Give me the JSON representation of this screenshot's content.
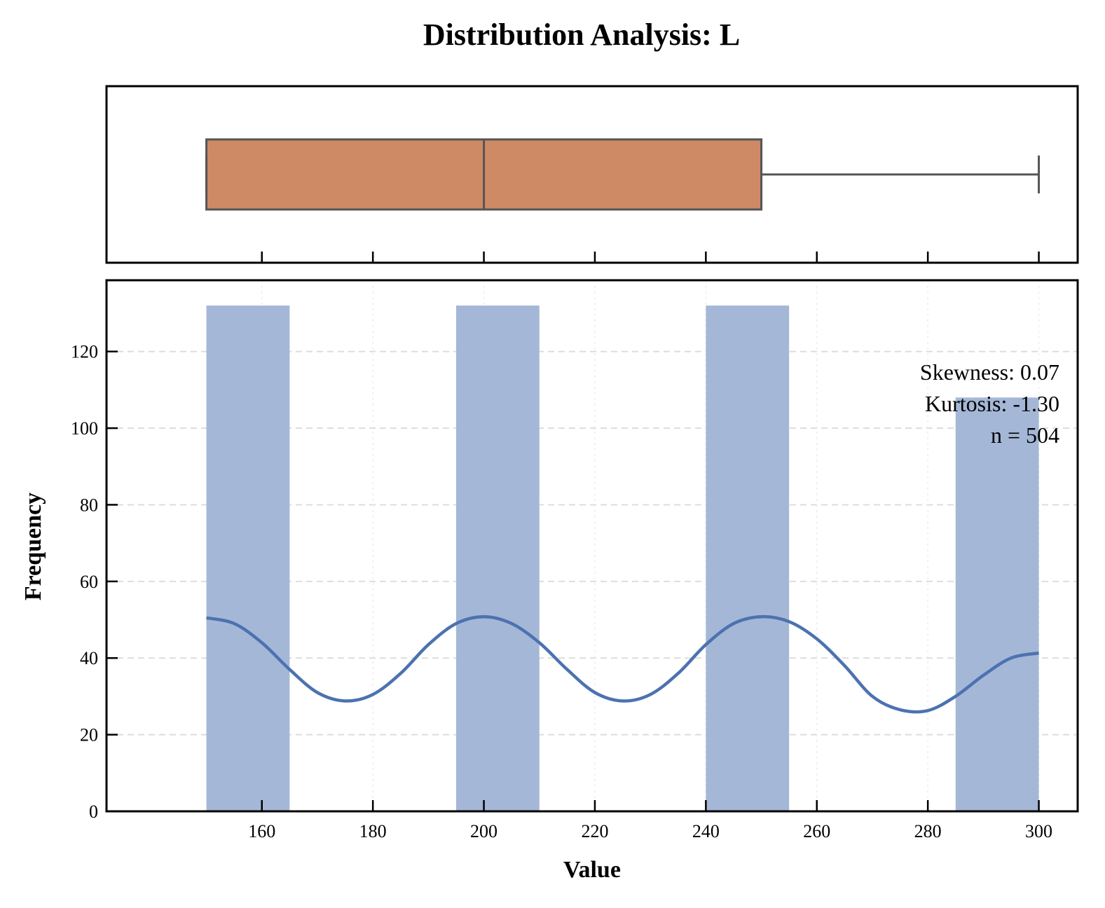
{
  "chart_data": [
    {
      "type": "box",
      "title": "Distribution Analysis: L",
      "min": 150,
      "q1": 150,
      "median": 200,
      "q3": 250,
      "max": 300,
      "xlim": [
        132,
        307
      ],
      "box_color": "#cd8a65",
      "edge_color": "#555555"
    },
    {
      "type": "histogram",
      "xlabel": "Value",
      "ylabel": "Frequency",
      "xlim": [
        132,
        307
      ],
      "ylim": [
        0,
        138.6
      ],
      "x_ticks": [
        160,
        180,
        200,
        220,
        240,
        260,
        280,
        300
      ],
      "y_ticks": [
        0,
        20,
        40,
        60,
        80,
        100,
        120
      ],
      "grid": true,
      "bins": [
        {
          "start": 150,
          "end": 165,
          "count": 132
        },
        {
          "start": 195,
          "end": 210,
          "count": 132
        },
        {
          "start": 240,
          "end": 255,
          "count": 132
        },
        {
          "start": 285,
          "end": 300,
          "count": 108
        }
      ],
      "bar_color": "#a5b7d7",
      "kde": {
        "color": "#4c72b0",
        "x": [
          150,
          155,
          160,
          165,
          170,
          175,
          180,
          185,
          190,
          195,
          200,
          205,
          210,
          215,
          220,
          225,
          230,
          235,
          240,
          245,
          250,
          255,
          260,
          265,
          270,
          275,
          280,
          285,
          290,
          295,
          300
        ],
        "y": [
          50.5,
          49.0,
          44.0,
          37.0,
          31.0,
          28.8,
          30.5,
          36.0,
          43.5,
          49.0,
          50.8,
          49.0,
          44.0,
          37.0,
          31.0,
          28.8,
          30.5,
          36.0,
          43.5,
          49.0,
          50.8,
          49.5,
          45.0,
          38.0,
          30.0,
          26.5,
          26.3,
          30.0,
          35.5,
          40.0,
          41.3
        ]
      },
      "annotation": {
        "placement": "top-right",
        "lines": [
          "Skewness: 0.07",
          "Kurtosis: -1.30",
          "n = 504"
        ]
      }
    }
  ]
}
